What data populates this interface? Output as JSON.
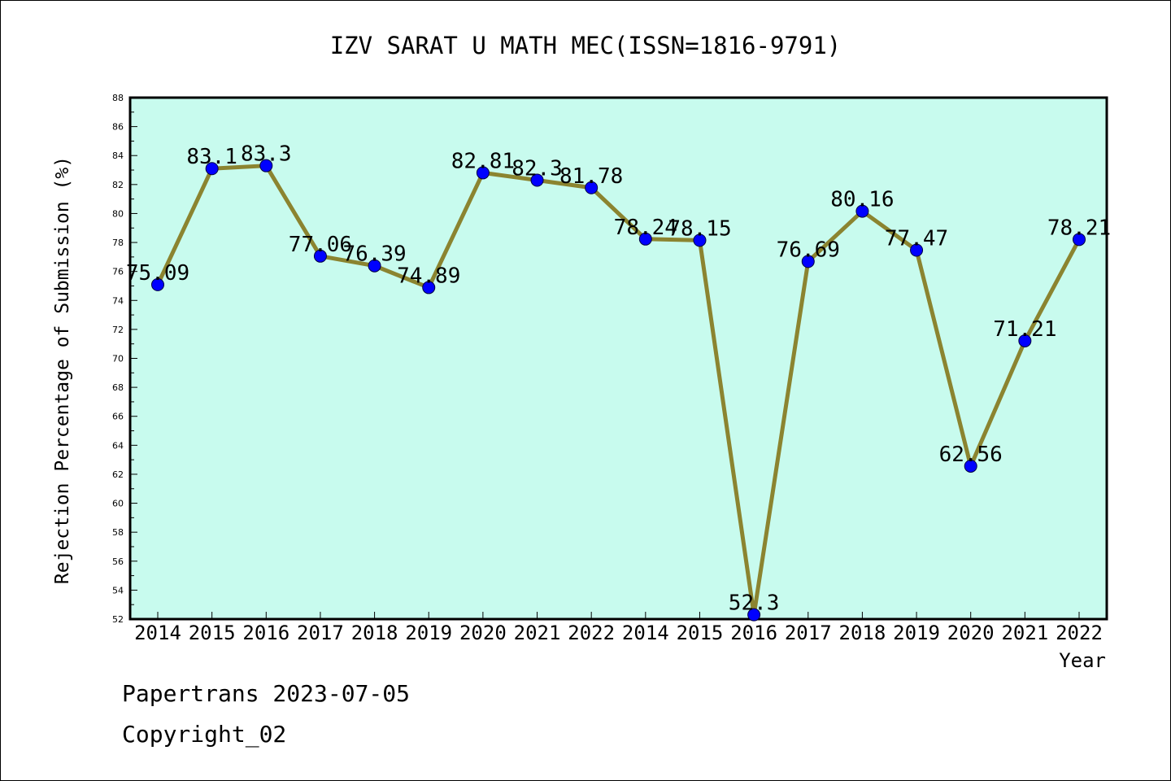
{
  "chart_data": {
    "type": "line",
    "title": "IZV SARAT U MATH MEC(ISSN=1816-9791)",
    "xlabel": "Year",
    "ylabel": "Rejection Percentage of Submission (%)",
    "categories": [
      "2014",
      "2015",
      "2016",
      "2017",
      "2018",
      "2019",
      "2020",
      "2021",
      "2022",
      "2014",
      "2015",
      "2016",
      "2017",
      "2018",
      "2019",
      "2020",
      "2021",
      "2022"
    ],
    "series": [
      {
        "values": [
          75.09,
          83.1,
          83.3,
          77.06,
          76.39,
          74.89,
          82.81,
          82.3,
          81.78,
          78.24,
          78.15,
          52.3,
          76.69,
          80.16,
          77.47,
          62.56,
          71.21,
          78.21
        ],
        "labels": [
          "75.09",
          "83.1",
          "83.3",
          "77.06",
          "76.39",
          "74.89",
          "82.81",
          "82.3",
          "81.78",
          "78.24",
          "78.15",
          "52.3",
          "76.69",
          "80.16",
          "77.47",
          "62.56",
          "71.21",
          "78.21"
        ]
      }
    ],
    "ylim": [
      52,
      88
    ],
    "yticks": [
      52,
      54,
      56,
      58,
      60,
      62,
      64,
      66,
      68,
      70,
      72,
      74,
      76,
      78,
      80,
      82,
      84,
      86,
      88
    ],
    "grid": false,
    "colors": {
      "plot_background": "#c8fbee",
      "line": "#8b8430",
      "marker": "#0000ff",
      "axis": "#000000"
    }
  },
  "footer": {
    "source": "Papertrans 2023-07-05",
    "copyright": "Copyright_02"
  }
}
